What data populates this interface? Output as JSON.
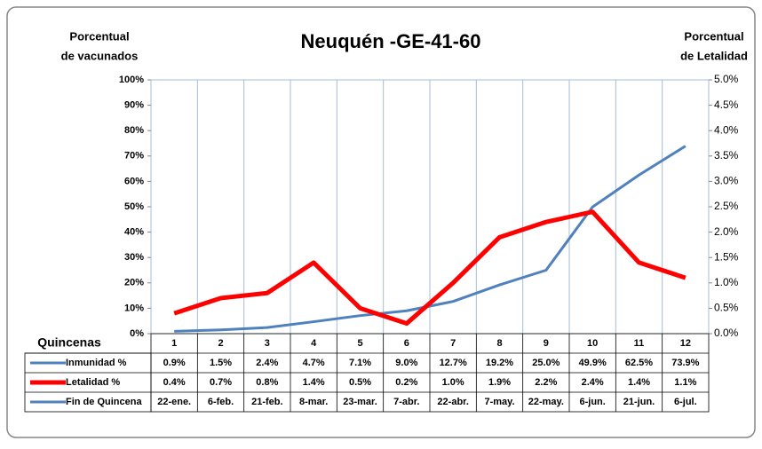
{
  "chart_data": {
    "type": "line",
    "title": "Neuquén -GE-41-60",
    "y_label": [
      "Porcentual",
      "de vacunados"
    ],
    "y2_label": [
      "Porcentual",
      "de Letalidad"
    ],
    "x_label": "Quincenas",
    "categories": [
      "1",
      "2",
      "3",
      "4",
      "5",
      "6",
      "7",
      "8",
      "9",
      "10",
      "11",
      "12"
    ],
    "series": [
      {
        "name": "Inmunidad  %",
        "color": "#4f81bd",
        "axis": "y",
        "values": [
          0.9,
          1.5,
          2.4,
          4.7,
          7.1,
          9.0,
          12.7,
          19.2,
          25.0,
          49.9,
          62.5,
          73.9
        ],
        "value_labels": [
          "0.9%",
          "1.5%",
          "2.4%",
          "4.7%",
          "7.1%",
          "9.0%",
          "12.7%",
          "19.2%",
          "25.0%",
          "49.9%",
          "62.5%",
          "73.9%"
        ]
      },
      {
        "name": "Letalidad %",
        "color": "#ff0000",
        "axis": "y2",
        "values": [
          0.4,
          0.7,
          0.8,
          1.4,
          0.5,
          0.2,
          1.0,
          1.9,
          2.2,
          2.4,
          1.4,
          1.1
        ],
        "value_labels": [
          "0.4%",
          "0.7%",
          "0.8%",
          "1.4%",
          "0.5%",
          "0.2%",
          "1.0%",
          "1.9%",
          "2.2%",
          "2.4%",
          "1.4%",
          "1.1%"
        ]
      }
    ],
    "date_row": {
      "name": "Fin de Quincena",
      "color": "#4f81bd",
      "labels": [
        "22-ene.",
        "6-feb.",
        "21-feb.",
        "8-mar.",
        "23-mar.",
        "7-abr.",
        "22-abr.",
        "7-may.",
        "22-may.",
        "6-jun.",
        "21-jun.",
        "6-jul."
      ]
    },
    "ylim": [
      0,
      100
    ],
    "yticks": [
      {
        "value": 0,
        "label": "0%"
      },
      {
        "value": 10,
        "label": "10%"
      },
      {
        "value": 20,
        "label": "20%"
      },
      {
        "value": 30,
        "label": "30%"
      },
      {
        "value": 40,
        "label": "40%"
      },
      {
        "value": 50,
        "label": "50%"
      },
      {
        "value": 60,
        "label": "60%"
      },
      {
        "value": 70,
        "label": "70%"
      },
      {
        "value": 80,
        "label": "80%"
      },
      {
        "value": 90,
        "label": "90%"
      },
      {
        "value": 100,
        "label": "100%"
      }
    ],
    "y2lim": [
      0,
      5
    ],
    "y2ticks": [
      {
        "value": 0,
        "label": "0.0%"
      },
      {
        "value": 0.5,
        "label": "0.5%"
      },
      {
        "value": 1,
        "label": "1.0%"
      },
      {
        "value": 1.5,
        "label": "1.5%"
      },
      {
        "value": 2,
        "label": "2.0%"
      },
      {
        "value": 2.5,
        "label": "2.5%"
      },
      {
        "value": 3,
        "label": "3.0%"
      },
      {
        "value": 3.5,
        "label": "3.5%"
      },
      {
        "value": 4,
        "label": "4.0%"
      },
      {
        "value": 4.5,
        "label": "4.5%"
      },
      {
        "value": 5,
        "label": "5.0%"
      }
    ]
  }
}
